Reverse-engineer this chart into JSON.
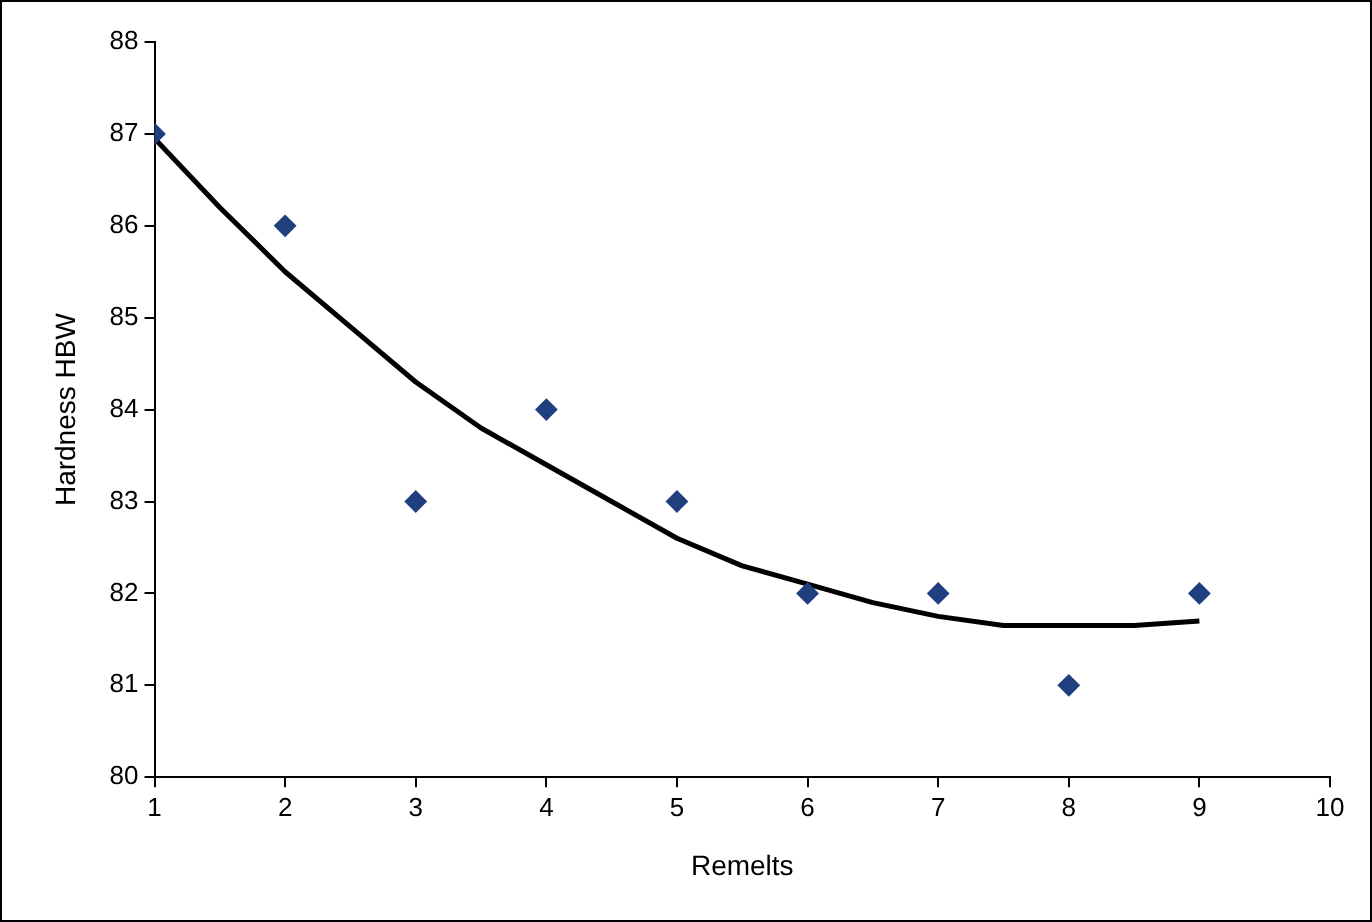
{
  "chart_data": {
    "type": "scatter",
    "xlabel": "Remelts",
    "ylabel": "Hardness HBW",
    "xlim": [
      1,
      10
    ],
    "xticks": [
      1,
      2,
      3,
      4,
      5,
      6,
      7,
      8,
      9,
      10
    ],
    "ylim": [
      80,
      88
    ],
    "yticks": [
      80,
      81,
      82,
      83,
      84,
      85,
      86,
      87,
      88
    ],
    "grid": false,
    "legend": false,
    "series": [
      {
        "type": "scatter",
        "color": "#1f3f7f",
        "marker": "diamond",
        "x": [
          1,
          2,
          3,
          4,
          5,
          6,
          7,
          8,
          9
        ],
        "values": [
          87,
          86,
          83,
          84,
          83,
          82,
          82,
          81,
          82
        ]
      },
      {
        "type": "line",
        "color": "#000000",
        "marker": "none",
        "line_style": "solid",
        "x": [
          1,
          1.5,
          2,
          2.5,
          3,
          3.5,
          4,
          4.5,
          5,
          5.5,
          6,
          6.5,
          7,
          7.5,
          8,
          8.5,
          9
        ],
        "values": [
          86.95,
          86.2,
          85.5,
          84.9,
          84.3,
          83.8,
          83.4,
          83.0,
          82.6,
          82.3,
          82.1,
          81.9,
          81.75,
          81.65,
          81.65,
          81.65,
          81.7
        ]
      }
    ]
  }
}
